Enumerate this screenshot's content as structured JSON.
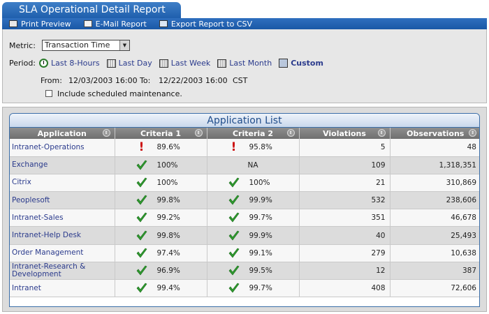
{
  "window": {
    "title": "SLA Operational Detail Report"
  },
  "toolbar": {
    "items": [
      {
        "label": "Print Preview",
        "icon": "printer-icon"
      },
      {
        "label": "E-Mail Report",
        "icon": "envelope-icon"
      },
      {
        "label": "Export Report to CSV",
        "icon": "export-icon"
      }
    ]
  },
  "filters": {
    "metric_label": "Metric:",
    "metric_value": "Transaction Time",
    "period_label": "Period:",
    "periods": [
      {
        "label": "Last 8-Hours",
        "icon": "clock-icon",
        "selected": false
      },
      {
        "label": "Last Day",
        "icon": "calendar-icon",
        "selected": false
      },
      {
        "label": "Last Week",
        "icon": "calendar-icon",
        "selected": false
      },
      {
        "label": "Last Month",
        "icon": "calendar-icon",
        "selected": false
      },
      {
        "label": "Custom",
        "icon": "custom-calendar-icon",
        "selected": true
      }
    ],
    "from_label": "From:",
    "from_value": "12/03/2003 16:00",
    "to_label": "To:",
    "to_value": "12/22/2003 16:00",
    "timezone": "CST",
    "maintenance_label": "Include scheduled maintenance.",
    "maintenance_checked": false
  },
  "app_list": {
    "title": "Application List",
    "columns": [
      "Application",
      "Criteria 1",
      "Criteria 2",
      "Violations",
      "Observations"
    ],
    "rows": [
      {
        "application": "Intranet-Operations",
        "c1_status": "warn",
        "c1": "89.6%",
        "c2_status": "warn",
        "c2": "95.8%",
        "violations": "5",
        "observations": "48"
      },
      {
        "application": "Exchange",
        "c1_status": "ok",
        "c1": "100%",
        "c2_status": "none",
        "c2": "NA",
        "violations": "109",
        "observations": "1,318,351"
      },
      {
        "application": "Citrix",
        "c1_status": "ok",
        "c1": "100%",
        "c2_status": "ok",
        "c2": "100%",
        "violations": "21",
        "observations": "310,869"
      },
      {
        "application": "Peoplesoft",
        "c1_status": "ok",
        "c1": "99.8%",
        "c2_status": "ok",
        "c2": "99.9%",
        "violations": "532",
        "observations": "238,606"
      },
      {
        "application": "Intranet-Sales",
        "c1_status": "ok",
        "c1": "99.2%",
        "c2_status": "ok",
        "c2": "99.7%",
        "violations": "351",
        "observations": "46,678"
      },
      {
        "application": "Intranet-Help Desk",
        "c1_status": "ok",
        "c1": "99.8%",
        "c2_status": "ok",
        "c2": "99.9%",
        "violations": "40",
        "observations": "25,493"
      },
      {
        "application": "Order Management",
        "c1_status": "ok",
        "c1": "97.4%",
        "c2_status": "ok",
        "c2": "99.1%",
        "violations": "279",
        "observations": "10,638"
      },
      {
        "application": "Intranet-Research & Development",
        "c1_status": "ok",
        "c1": "96.9%",
        "c2_status": "ok",
        "c2": "99.5%",
        "violations": "12",
        "observations": "387"
      },
      {
        "application": "Intranet",
        "c1_status": "ok",
        "c1": "99.4%",
        "c2_status": "ok",
        "c2": "99.7%",
        "violations": "408",
        "observations": "72,606"
      }
    ]
  },
  "colors": {
    "accent": "#1f5fad",
    "link": "#2a3a8c",
    "ok": "#2f9a2f",
    "warn": "#cc1111"
  }
}
